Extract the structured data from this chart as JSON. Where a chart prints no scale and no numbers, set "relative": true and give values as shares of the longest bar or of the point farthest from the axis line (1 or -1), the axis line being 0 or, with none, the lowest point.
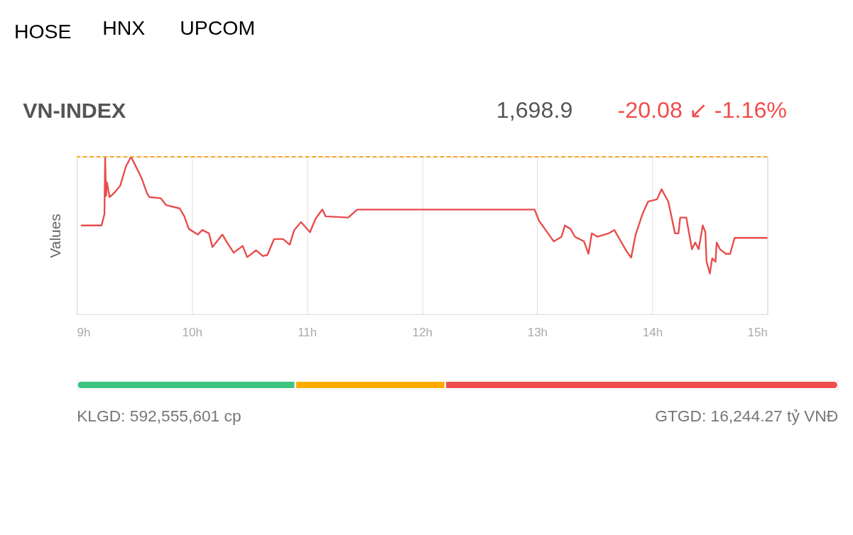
{
  "chart_data": [
    {
      "type": "line",
      "title": "VN-INDEX",
      "ylabel": "Values",
      "relative": true,
      "grid": "x",
      "annotations": [
        "HOSE",
        "HNX",
        "UPCOM",
        "1,698.9",
        "-20.08 ↙ -1.16%"
      ],
      "xlim": [
        9,
        15
      ],
      "xticks": [
        {
          "value": 9,
          "label": "9h"
        },
        {
          "value": 10,
          "label": "10h"
        },
        {
          "value": 11,
          "label": "11h"
        },
        {
          "value": 12,
          "label": "12h"
        },
        {
          "value": 13,
          "label": "13h"
        },
        {
          "value": 14,
          "label": "14h"
        },
        {
          "value": 15,
          "label": "15h"
        }
      ],
      "ref_lines": [
        {
          "axis": "y",
          "value": 1,
          "color": "#f5a623",
          "line_style": "dashed"
        }
      ],
      "series": [
        {
          "color": "#e84c4c",
          "x": [
            9.035,
            9.215,
            9.24,
            9.246,
            9.254,
            9.262,
            9.285,
            9.328,
            9.377,
            9.426,
            9.471,
            9.504,
            9.562,
            9.611,
            9.631,
            9.728,
            9.777,
            9.894,
            9.934,
            9.973,
            10.051,
            10.09,
            10.148,
            10.178,
            10.265,
            10.305,
            10.363,
            10.441,
            10.48,
            10.558,
            10.616,
            10.656,
            10.714,
            10.792,
            10.85,
            10.889,
            10.948,
            11.026,
            11.074,
            11.133,
            11.162,
            11.358,
            11.436,
            12.977,
            13.016,
            13.094,
            13.143,
            13.211,
            13.24,
            13.289,
            13.328,
            13.406,
            13.445,
            13.474,
            13.523,
            13.621,
            13.67,
            13.709,
            13.777,
            13.816,
            13.855,
            13.914,
            13.963,
            14.041,
            14.08,
            14.139,
            14.197,
            14.227,
            14.242,
            14.295,
            14.344,
            14.373,
            14.403,
            14.438,
            14.461,
            14.471,
            14.5,
            14.52,
            14.549,
            14.559,
            14.588,
            14.637,
            14.676,
            14.715,
            15.0
          ],
          "values": [
            0.564,
            0.564,
            0.636,
            0.996,
            0.751,
            0.838,
            0.744,
            0.773,
            0.816,
            0.938,
            1.0,
            0.952,
            0.866,
            0.766,
            0.744,
            0.737,
            0.693,
            0.672,
            0.622,
            0.542,
            0.506,
            0.535,
            0.514,
            0.427,
            0.506,
            0.456,
            0.391,
            0.434,
            0.363,
            0.406,
            0.37,
            0.377,
            0.478,
            0.478,
            0.442,
            0.535,
            0.585,
            0.521,
            0.607,
            0.665,
            0.622,
            0.614,
            0.665,
            0.665,
            0.593,
            0.514,
            0.463,
            0.492,
            0.564,
            0.542,
            0.492,
            0.463,
            0.384,
            0.514,
            0.492,
            0.514,
            0.535,
            0.485,
            0.399,
            0.36,
            0.506,
            0.636,
            0.715,
            0.73,
            0.794,
            0.715,
            0.514,
            0.514,
            0.614,
            0.614,
            0.413,
            0.456,
            0.413,
            0.564,
            0.521,
            0.334,
            0.259,
            0.355,
            0.334,
            0.456,
            0.413,
            0.384,
            0.384,
            0.485,
            0.485
          ]
        }
      ]
    },
    {
      "type": "bar",
      "orientation": "horizontal",
      "stacked": true,
      "relative": true,
      "categories": [
        null
      ],
      "annotations": [
        "KLGD:  592,555,601  cp",
        "GTGD:  16,244.27  tỷ VNĐ"
      ],
      "series": [
        {
          "color": "#3cc480",
          "values": [
            0.287
          ]
        },
        {
          "color": "#ffab00",
          "values": [
            0.197
          ]
        },
        {
          "color": "#f04c4c",
          "values": [
            0.516
          ]
        }
      ]
    }
  ]
}
